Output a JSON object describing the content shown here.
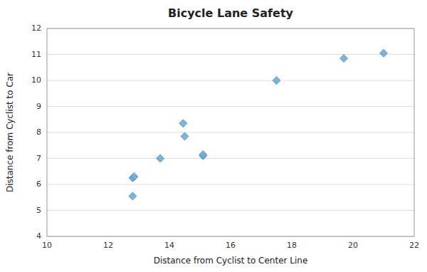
{
  "chart_data": {
    "type": "scatter",
    "title": "Bicycle Lane Safety",
    "xlabel": "Distance from Cyclist to Center Line",
    "ylabel": "Distance from Cyclist to Car",
    "x": [
      12.8,
      12.85,
      12.8,
      13.7,
      14.45,
      14.5,
      15.1,
      15.1,
      17.5,
      19.7,
      21.0
    ],
    "values": [
      6.25,
      6.3,
      5.55,
      7.0,
      8.35,
      7.85,
      7.1,
      7.15,
      10.0,
      10.85,
      11.05
    ],
    "xlim": [
      10,
      22
    ],
    "ylim": [
      4,
      12
    ],
    "xticks": [
      10,
      12,
      14,
      16,
      18,
      20,
      22
    ],
    "yticks": [
      4,
      5,
      6,
      7,
      8,
      9,
      10,
      11,
      12
    ],
    "color": "#6baed6",
    "marker": "diamond",
    "grid": "y"
  }
}
